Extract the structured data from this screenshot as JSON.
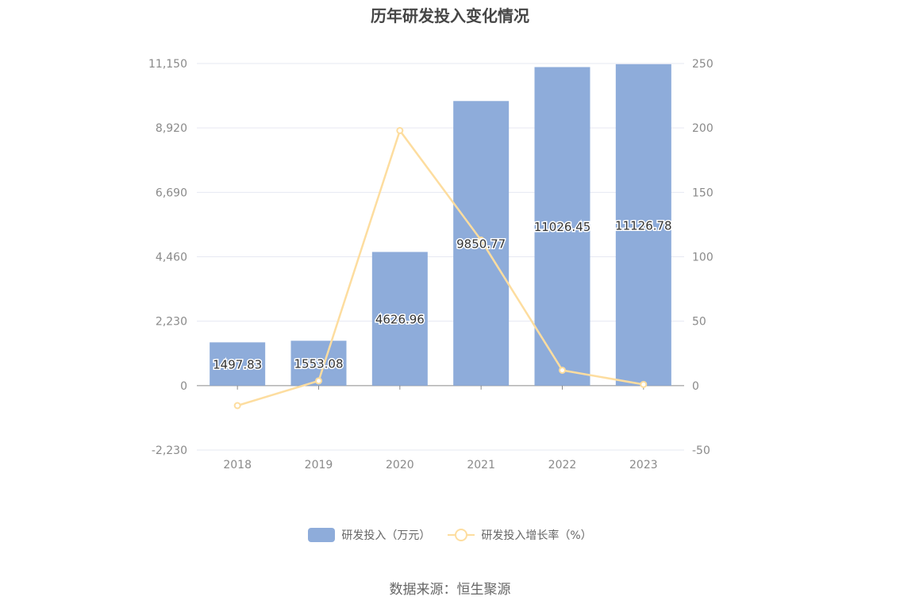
{
  "title": "历年研发投入变化情况",
  "source": "数据来源：恒生聚源",
  "chart_data": {
    "type": "bar",
    "categories": [
      "2018",
      "2019",
      "2020",
      "2021",
      "2022",
      "2023"
    ],
    "series": [
      {
        "name": "研发投入（万元）",
        "type": "bar",
        "axis": "left",
        "values": [
          1497.83,
          1553.08,
          4626.96,
          9850.77,
          11026.45,
          11126.78
        ],
        "color": "#8eacda"
      },
      {
        "name": "研发投入增长率（%）",
        "type": "line",
        "axis": "right",
        "values": [
          -15.5,
          3.69,
          197.93,
          112.9,
          11.93,
          0.91
        ],
        "color": "#fddd9f"
      }
    ],
    "y_left": {
      "ylim": [
        -2230,
        11150
      ],
      "ticks": [
        "-2,230",
        "0",
        "2,230",
        "4,460",
        "6,690",
        "8,920",
        "11,150"
      ]
    },
    "y_right": {
      "ylim": [
        -50,
        250
      ],
      "ticks": [
        "-50",
        "0",
        "50",
        "100",
        "150",
        "200",
        "250"
      ]
    },
    "data_labels": [
      "1497.83",
      "1553.08",
      "4626.96",
      "9850.77",
      "11026.45",
      "11126.78"
    ],
    "grid": true,
    "legend_position": "bottom"
  }
}
